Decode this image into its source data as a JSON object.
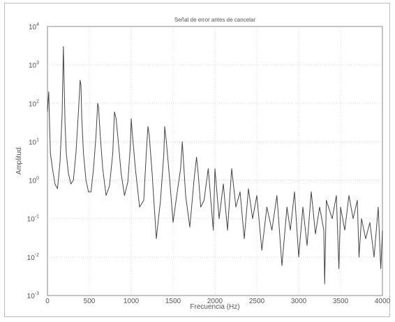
{
  "chart_data": {
    "type": "line",
    "title": "Señal de error antes de cancelar",
    "xlabel": "Frecuencia (Hz)",
    "ylabel": "Amplitud",
    "x_scale": "linear",
    "y_scale": "log",
    "xlim": [
      0,
      4000
    ],
    "ylim": [
      0.001,
      10000
    ],
    "xticks": [
      0,
      500,
      1000,
      1500,
      2000,
      2500,
      3000,
      3500,
      4000
    ],
    "xtick_labels": [
      "0",
      "500",
      "1000",
      "1500",
      "2000",
      "2500",
      "3000",
      "3500",
      "4000"
    ],
    "ytick_labels": [
      {
        "base": "10",
        "exp": "-3"
      },
      {
        "base": "10",
        "exp": "-2"
      },
      {
        "base": "10",
        "exp": "-1"
      },
      {
        "base": "10",
        "exp": "0"
      },
      {
        "base": "10",
        "exp": "1"
      },
      {
        "base": "10",
        "exp": "2"
      },
      {
        "base": "10",
        "exp": "3"
      },
      {
        "base": "10",
        "exp": "4"
      }
    ],
    "grid": true,
    "line_color": "#444444",
    "series": [
      {
        "x": [
          0,
          15,
          35,
          60,
          90,
          120,
          150,
          175,
          190,
          200,
          210,
          225,
          250,
          280,
          310,
          340,
          370,
          390,
          400,
          410,
          430,
          460,
          490,
          520,
          550,
          580,
          600,
          610,
          630,
          660,
          700,
          740,
          780,
          800,
          820,
          850,
          880,
          920,
          960,
          990,
          1000,
          1010,
          1050,
          1100,
          1150,
          1180,
          1200,
          1215,
          1250,
          1300,
          1350,
          1390,
          1400,
          1420,
          1460,
          1500,
          1550,
          1590,
          1610,
          1650,
          1700,
          1750,
          1780,
          1800,
          1830,
          1870,
          1920,
          1980,
          2000,
          2050,
          2100,
          2150,
          2200,
          2250,
          2300,
          2350,
          2400,
          2450,
          2500,
          2560,
          2620,
          2680,
          2740,
          2800,
          2860,
          2900,
          2950,
          3000,
          3050,
          3100,
          3150,
          3200,
          3250,
          3300,
          3310,
          3330,
          3400,
          3450,
          3480,
          3500,
          3550,
          3600,
          3650,
          3700,
          3720,
          3750,
          3800,
          3850,
          3900,
          3950,
          3980,
          4000
        ],
        "y": [
          60,
          200,
          5,
          2,
          0.8,
          0.6,
          3,
          50,
          3000,
          300,
          30,
          5,
          1.5,
          0.8,
          1,
          5,
          60,
          400,
          300,
          40,
          5,
          1,
          0.5,
          0.5,
          2,
          15,
          100,
          80,
          15,
          2,
          0.4,
          0.7,
          5,
          60,
          40,
          8,
          1.5,
          0.4,
          0.9,
          8,
          40,
          20,
          2,
          0.2,
          0.3,
          5,
          25,
          15,
          1.5,
          0.03,
          0.3,
          5,
          25,
          10,
          1,
          0.08,
          0.5,
          2,
          10,
          0.4,
          0.06,
          1,
          4,
          1.5,
          0.2,
          0.3,
          2,
          0.05,
          2,
          0.1,
          0.8,
          0.05,
          2,
          0.2,
          0.5,
          0.03,
          0.6,
          0.1,
          0.4,
          0.015,
          0.2,
          0.05,
          0.4,
          0.006,
          0.2,
          0.05,
          0.5,
          0.01,
          0.2,
          0.02,
          0.5,
          0.04,
          0.2,
          0.05,
          0.002,
          0.3,
          0.1,
          0.4,
          0.005,
          0.2,
          0.05,
          0.4,
          0.1,
          0.3,
          0.01,
          0.1,
          0.03,
          0.08,
          0.01,
          0.2,
          0.005,
          0.05
        ]
      }
    ]
  }
}
